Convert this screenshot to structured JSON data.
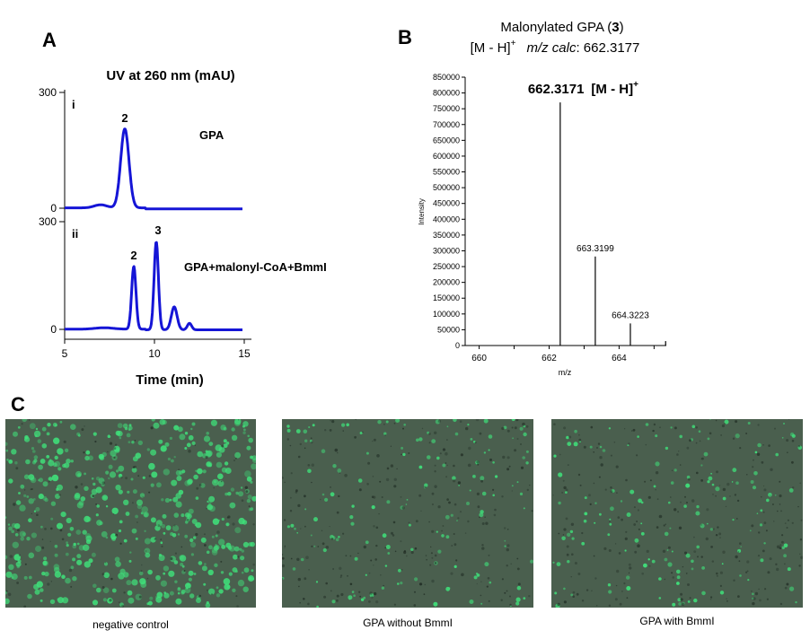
{
  "panels": {
    "A": "A",
    "B": "B",
    "C": "C"
  },
  "chart_data": [
    {
      "type": "line",
      "panel": "A",
      "title": "UV at 260 nm (mAU)",
      "xlabel": "Time (min)",
      "xlim": [
        5,
        15
      ],
      "x_ticks": [
        "5",
        "10",
        "15"
      ],
      "y_ticks": [
        "300",
        "0"
      ],
      "traces": [
        {
          "name": "GPA",
          "label": "i",
          "color": "#1515d6",
          "ylim": [
            0,
            300
          ],
          "peaks": [
            {
              "x": 7.0,
              "y": 8,
              "w": 0.35
            },
            {
              "x": 8.35,
              "y": 205,
              "w": 0.23,
              "label": "2"
            }
          ]
        },
        {
          "name": "GPA+malonyl-CoA+BmmI",
          "label": "ii",
          "color": "#1515d6",
          "ylim": [
            0,
            300
          ],
          "peaks": [
            {
              "x": 7.2,
              "y": 4,
              "w": 0.5
            },
            {
              "x": 8.85,
              "y": 175,
              "w": 0.12,
              "label": "2"
            },
            {
              "x": 10.1,
              "y": 245,
              "w": 0.12,
              "label": "3"
            },
            {
              "x": 11.1,
              "y": 64,
              "w": 0.16
            },
            {
              "x": 11.95,
              "y": 18,
              "w": 0.12
            }
          ]
        }
      ]
    },
    {
      "type": "bar",
      "panel": "B",
      "title_main": "Malonylated GPA (",
      "title_bold": "3",
      "title_end": ")",
      "subtitle_prefix": "[M - H]",
      "subtitle_sup": "+",
      "subtitle_italic": "m/z calc",
      "subtitle_value": ": 662.3177",
      "xlabel": "m/z",
      "ylabel": "Intensity",
      "xlim": [
        659.6,
        665.35
      ],
      "ylim": [
        0,
        850000
      ],
      "x_ticks": [
        660,
        662,
        664
      ],
      "y_ticks": [
        0,
        50000,
        100000,
        150000,
        200000,
        250000,
        300000,
        350000,
        400000,
        450000,
        500000,
        550000,
        600000,
        650000,
        700000,
        750000,
        800000,
        850000
      ],
      "peaks": [
        {
          "x": 662.3171,
          "y": 770000,
          "label": "662.3171",
          "suffix": "[M - H]",
          "sup": "+"
        },
        {
          "x": 663.3199,
          "y": 282000,
          "label": "663.3199"
        },
        {
          "x": 664.3223,
          "y": 70000,
          "label": "664.3223"
        },
        {
          "x": 665.33,
          "y": 14000
        }
      ]
    }
  ],
  "images": [
    {
      "caption": "negative control",
      "density": "high"
    },
    {
      "caption": "GPA without BmmI",
      "density": "low"
    },
    {
      "caption": "GPA with BmmI",
      "density": "low"
    }
  ],
  "colors": {
    "trace": "#1515d6",
    "micro_bg": "#4a5f4e",
    "cell": "#3fe07a"
  }
}
